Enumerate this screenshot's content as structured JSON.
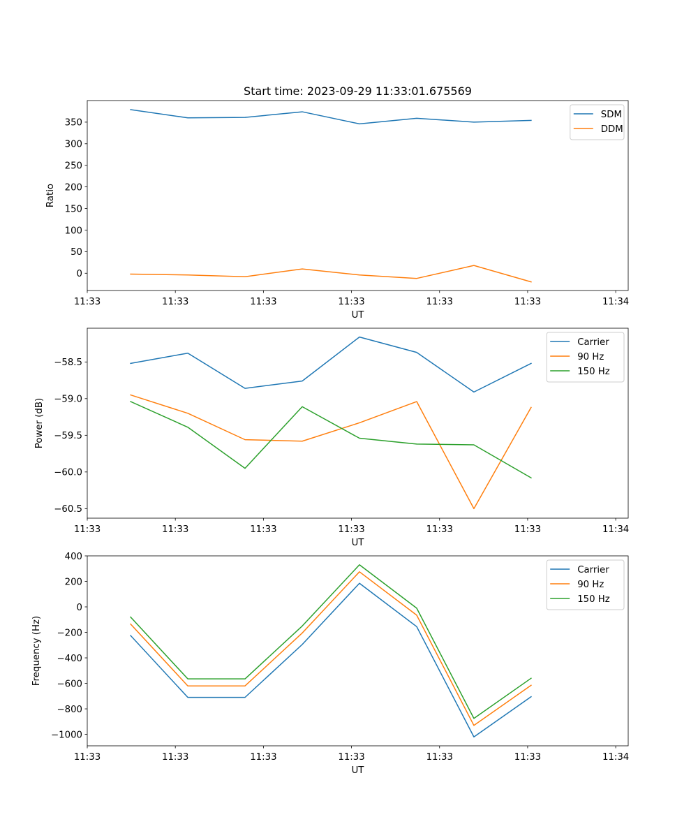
{
  "title": "Start time: 2023-09-29 11:33:01.675569",
  "chart_data": [
    {
      "type": "line",
      "ylabel": "Ratio",
      "xlabel": "UT",
      "xlim": [
        0,
        31.2
      ],
      "ylim": [
        -40,
        400
      ],
      "yticks": [
        0,
        50,
        100,
        150,
        200,
        250,
        300,
        350
      ],
      "ytick_labels": [
        "0",
        "50",
        "100",
        "150",
        "200",
        "250",
        "300",
        "350"
      ],
      "xticks": [
        0,
        5.08,
        10.16,
        15.24,
        20.32,
        25.4,
        30.48
      ],
      "xtick_labels": [
        "11:33",
        "11:33",
        "11:33",
        "11:33",
        "11:33",
        "11:33",
        "11:34"
      ],
      "x": [
        2.5,
        5.8,
        9.1,
        12.4,
        15.7,
        19.0,
        22.3,
        25.6
      ],
      "legend": "top-right",
      "series": [
        {
          "name": "SDM",
          "color": "#1f77b4",
          "values": [
            379,
            360,
            361,
            374,
            346,
            359,
            350,
            354
          ]
        },
        {
          "name": "DDM",
          "color": "#ff7f0e",
          "values": [
            -2,
            -4,
            -8,
            10,
            -4,
            -12,
            18,
            -20
          ]
        }
      ]
    },
    {
      "type": "line",
      "ylabel": "Power (dB)",
      "xlabel": "UT",
      "xlim": [
        0,
        31.2
      ],
      "ylim": [
        -60.63,
        -58.04
      ],
      "yticks": [
        -60.5,
        -60.0,
        -59.5,
        -59.0,
        -58.5
      ],
      "ytick_labels": [
        "−60.5",
        "−60.0",
        "−59.5",
        "−59.0",
        "−58.5"
      ],
      "xticks": [
        0,
        5.08,
        10.16,
        15.24,
        20.32,
        25.4,
        30.48
      ],
      "xtick_labels": [
        "11:33",
        "11:33",
        "11:33",
        "11:33",
        "11:33",
        "11:33",
        "11:34"
      ],
      "x": [
        2.5,
        5.8,
        9.1,
        12.4,
        15.7,
        19.0,
        22.3,
        25.6
      ],
      "legend": "top-right",
      "series": [
        {
          "name": "Carrier",
          "color": "#1f77b4",
          "values": [
            -58.52,
            -58.38,
            -58.86,
            -58.76,
            -58.16,
            -58.37,
            -58.91,
            -58.52
          ]
        },
        {
          "name": "90 Hz",
          "color": "#ff7f0e",
          "values": [
            -58.95,
            -59.2,
            -59.56,
            -59.58,
            -59.33,
            -59.04,
            -60.5,
            -59.12
          ]
        },
        {
          "name": "150 Hz",
          "color": "#2ca02c",
          "values": [
            -59.04,
            -59.39,
            -59.95,
            -59.11,
            -59.54,
            -59.62,
            -59.63,
            -60.08
          ]
        }
      ]
    },
    {
      "type": "line",
      "ylabel": "Frequency (Hz)",
      "xlabel": "UT",
      "xlim": [
        0,
        31.2
      ],
      "ylim": [
        -1090,
        400
      ],
      "yticks": [
        -1000,
        -800,
        -600,
        -400,
        -200,
        0,
        200,
        400
      ],
      "ytick_labels": [
        "−1000",
        "−800",
        "−600",
        "−400",
        "−200",
        "0",
        "200",
        "400"
      ],
      "xticks": [
        0,
        5.08,
        10.16,
        15.24,
        20.32,
        25.4,
        30.48
      ],
      "xtick_labels": [
        "11:33",
        "11:33",
        "11:33",
        "11:33",
        "11:33",
        "11:33",
        "11:34"
      ],
      "x": [
        2.5,
        5.8,
        9.1,
        12.4,
        15.7,
        19.0,
        22.3,
        25.6
      ],
      "legend": "top-right",
      "series": [
        {
          "name": "Carrier",
          "color": "#1f77b4",
          "values": [
            -225,
            -710,
            -710,
            -295,
            185,
            -155,
            -1020,
            -705
          ]
        },
        {
          "name": "90 Hz",
          "color": "#ff7f0e",
          "values": [
            -135,
            -620,
            -620,
            -205,
            275,
            -65,
            -930,
            -615
          ]
        },
        {
          "name": "150 Hz",
          "color": "#2ca02c",
          "values": [
            -80,
            -565,
            -565,
            -150,
            330,
            -10,
            -875,
            -560
          ]
        }
      ]
    }
  ]
}
